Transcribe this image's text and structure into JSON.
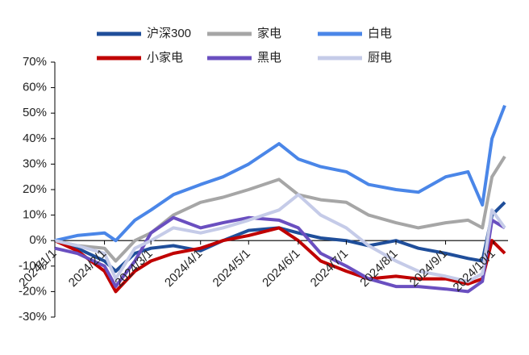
{
  "chart_data": {
    "type": "line",
    "x": [
      "2024-01-01",
      "2024-01-15",
      "2024-02-01",
      "2024-02-08",
      "2024-02-20",
      "2024-03-01",
      "2024-03-15",
      "2024-04-01",
      "2024-04-15",
      "2024-05-01",
      "2024-05-20",
      "2024-06-01",
      "2024-06-15",
      "2024-07-01",
      "2024-07-15",
      "2024-08-01",
      "2024-08-15",
      "2024-09-01",
      "2024-09-15",
      "2024-09-24",
      "2024-09-30",
      "2024-10-08"
    ],
    "series": [
      {
        "name": "沪深300",
        "color": "#1f4e9a",
        "values": [
          0,
          -3,
          -8,
          -12,
          -5,
          -3,
          -2,
          -4,
          0,
          4,
          5,
          3,
          1,
          0,
          -2,
          0,
          -3,
          -5,
          -7,
          -8,
          10,
          15
        ]
      },
      {
        "name": "家电",
        "color": "#a6a6a6",
        "values": [
          0,
          -2,
          -3,
          -8,
          0,
          3,
          10,
          15,
          17,
          20,
          24,
          18,
          16,
          15,
          10,
          7,
          5,
          7,
          8,
          5,
          25,
          33
        ]
      },
      {
        "name": "白电",
        "color": "#4a86e8",
        "values": [
          0,
          2,
          3,
          0,
          8,
          12,
          18,
          22,
          25,
          30,
          38,
          32,
          29,
          27,
          22,
          20,
          19,
          25,
          27,
          14,
          40,
          53
        ]
      },
      {
        "name": "小家电",
        "color": "#c00000",
        "values": [
          0,
          -4,
          -12,
          -20,
          -12,
          -8,
          -5,
          -3,
          0,
          2,
          5,
          0,
          -8,
          -12,
          -15,
          -14,
          -15,
          -15,
          -17,
          -15,
          0,
          -5
        ]
      },
      {
        "name": "黑电",
        "color": "#6a4fc0",
        "values": [
          -3,
          -5,
          -10,
          -18,
          -8,
          3,
          9,
          5,
          7,
          9,
          8,
          5,
          -5,
          -10,
          -15,
          -18,
          -18,
          -19,
          -20,
          -16,
          8,
          5
        ]
      },
      {
        "name": "厨电",
        "color": "#c5cbe8",
        "values": [
          0,
          -2,
          -5,
          -15,
          -3,
          0,
          5,
          3,
          5,
          8,
          12,
          18,
          10,
          5,
          -2,
          -8,
          -12,
          -14,
          -16,
          -13,
          12,
          5
        ]
      }
    ],
    "xlim": [
      "2024-01-01",
      "2024-10-10"
    ],
    "xticks": [
      {
        "value": "2024-01-01",
        "label": "2024/1/1"
      },
      {
        "value": "2024-02-01",
        "label": "2024/2/1"
      },
      {
        "value": "2024-03-01",
        "label": "2024/3/1"
      },
      {
        "value": "2024-04-01",
        "label": "2024/4/1"
      },
      {
        "value": "2024-05-01",
        "label": "2024/5/1"
      },
      {
        "value": "2024-06-01",
        "label": "2024/6/1"
      },
      {
        "value": "2024-07-01",
        "label": "2024/7/1"
      },
      {
        "value": "2024-08-01",
        "label": "2024/8/1"
      },
      {
        "value": "2024-09-01",
        "label": "2024/9/1"
      },
      {
        "value": "2024-10-01",
        "label": "2024/10/1"
      }
    ],
    "ylim": [
      -30,
      70
    ],
    "yticks": [
      {
        "value": -30,
        "label": "-30%"
      },
      {
        "value": -20,
        "label": "-20%"
      },
      {
        "value": -10,
        "label": "-10%"
      },
      {
        "value": 0,
        "label": "0%"
      },
      {
        "value": 10,
        "label": "10%"
      },
      {
        "value": 20,
        "label": "20%"
      },
      {
        "value": 30,
        "label": "30%"
      },
      {
        "value": 40,
        "label": "40%"
      },
      {
        "value": 50,
        "label": "50%"
      },
      {
        "value": 60,
        "label": "60%"
      },
      {
        "value": 70,
        "label": "70%"
      }
    ],
    "legend": "top"
  }
}
